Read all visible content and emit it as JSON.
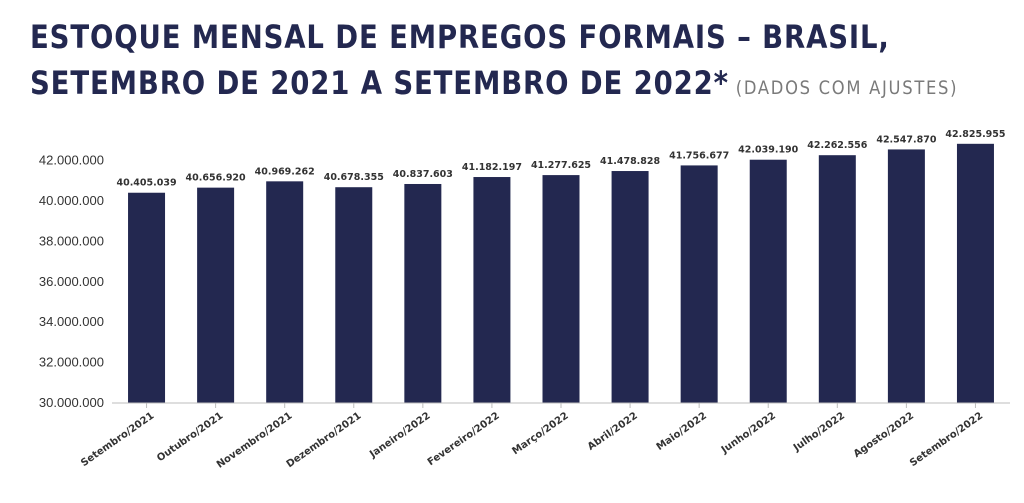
{
  "title": {
    "line1": "ESTOQUE MENSAL DE EMPREGOS FORMAIS – BRASIL,",
    "line2": "SETEMBRO DE 2021 A SETEMBRO DE 2022*",
    "subtitle": "(DADOS COM AJUSTES)"
  },
  "colors": {
    "bar": "#232850",
    "title": "#232850"
  },
  "chart_data": {
    "type": "bar",
    "categories": [
      "Setembro/2021",
      "Outubro/2021",
      "Novembro/2021",
      "Dezembro/2021",
      "Janeiro/2022",
      "Fevereiro/2022",
      "Março/2022",
      "Abril/2022",
      "Maio/2022",
      "Junho/2022",
      "Julho/2022",
      "Agosto/2022",
      "Setembro/2022"
    ],
    "values": [
      40405039,
      40656920,
      40969262,
      40678355,
      40837603,
      41182197,
      41277625,
      41478828,
      41756677,
      42039190,
      42262556,
      42547870,
      42825955
    ],
    "value_labels": [
      "40.405.039",
      "40.656.920",
      "40.969.262",
      "40.678.355",
      "40.837.603",
      "41.182.197",
      "41.277.625",
      "41.478.828",
      "41.756.677",
      "42.039.190",
      "42.262.556",
      "42.547.870",
      "42.825.955"
    ],
    "ylim": [
      30000000,
      43000000
    ],
    "yticks": [
      30000000,
      32000000,
      34000000,
      36000000,
      38000000,
      40000000,
      42000000
    ],
    "ytick_labels": [
      "30.000.000",
      "32.000.000",
      "34.000.000",
      "36.000.000",
      "38.000.000",
      "40.000.000",
      "42.000.000"
    ],
    "xlabel": "",
    "ylabel": "",
    "grid": false
  }
}
